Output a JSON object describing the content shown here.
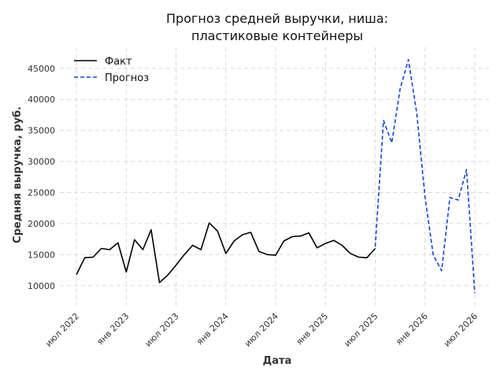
{
  "chart_data": {
    "type": "line",
    "title_lines": [
      "Прогноз средней выручки, ниша:",
      "пластиковые контейнеры"
    ],
    "xlabel": "Дата",
    "ylabel": "Средняя выручка, руб.",
    "x_ticks": [
      {
        "date": "2022-07",
        "label": "июл 2022"
      },
      {
        "date": "2023-01",
        "label": "янв 2023"
      },
      {
        "date": "2023-07",
        "label": "июл 2023"
      },
      {
        "date": "2024-01",
        "label": "янв 2024"
      },
      {
        "date": "2024-07",
        "label": "июл 2024"
      },
      {
        "date": "2025-01",
        "label": "янв 2025"
      },
      {
        "date": "2025-07",
        "label": "июл 2025"
      },
      {
        "date": "2026-01",
        "label": "янв 2026"
      },
      {
        "date": "2026-07",
        "label": "июл 2026"
      }
    ],
    "xlim": [
      "2022-05",
      "2026-09"
    ],
    "y_ticks": [
      10000,
      15000,
      20000,
      25000,
      30000,
      35000,
      40000,
      45000
    ],
    "ylim": [
      6800,
      48400
    ],
    "grid": true,
    "legend_position": "top-left",
    "series": [
      {
        "name": "Факт",
        "color": "#000000",
        "line_style": "solid",
        "points": [
          [
            "2022-07",
            11800
          ],
          [
            "2022-08",
            14500
          ],
          [
            "2022-09",
            14600
          ],
          [
            "2022-10",
            16000
          ],
          [
            "2022-11",
            15800
          ],
          [
            "2022-12",
            16900
          ],
          [
            "2023-01",
            12200
          ],
          [
            "2023-02",
            17400
          ],
          [
            "2023-03",
            15800
          ],
          [
            "2023-04",
            19000
          ],
          [
            "2023-05",
            10500
          ],
          [
            "2023-06",
            11700
          ],
          [
            "2023-07",
            13300
          ],
          [
            "2023-08",
            15000
          ],
          [
            "2023-09",
            16500
          ],
          [
            "2023-10",
            15800
          ],
          [
            "2023-11",
            20100
          ],
          [
            "2023-12",
            18800
          ],
          [
            "2024-01",
            15200
          ],
          [
            "2024-02",
            17200
          ],
          [
            "2024-03",
            18200
          ],
          [
            "2024-04",
            18600
          ],
          [
            "2024-05",
            15500
          ],
          [
            "2024-06",
            15000
          ],
          [
            "2024-07",
            14900
          ],
          [
            "2024-08",
            17200
          ],
          [
            "2024-09",
            17900
          ],
          [
            "2024-10",
            18000
          ],
          [
            "2024-11",
            18500
          ],
          [
            "2024-12",
            16100
          ],
          [
            "2025-01",
            16800
          ],
          [
            "2025-02",
            17300
          ],
          [
            "2025-03",
            16500
          ],
          [
            "2025-04",
            15200
          ],
          [
            "2025-05",
            14600
          ],
          [
            "2025-06",
            14500
          ],
          [
            "2025-07",
            16000
          ]
        ]
      },
      {
        "name": "Прогноз",
        "color": "#0044ff",
        "line_style": "dashed",
        "points": [
          [
            "2025-07",
            16300
          ],
          [
            "2025-08",
            36600
          ],
          [
            "2025-09",
            33000
          ],
          [
            "2025-10",
            41700
          ],
          [
            "2025-11",
            46400
          ],
          [
            "2025-12",
            37800
          ],
          [
            "2026-01",
            24300
          ],
          [
            "2026-02",
            14900
          ],
          [
            "2026-03",
            12400
          ],
          [
            "2026-04",
            24200
          ],
          [
            "2026-05",
            23800
          ],
          [
            "2026-06",
            28700
          ],
          [
            "2026-07",
            8800
          ]
        ]
      }
    ]
  }
}
